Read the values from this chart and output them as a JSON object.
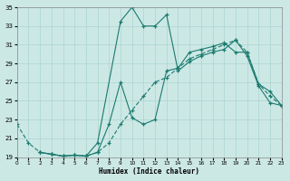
{
  "xlabel": "Humidex (Indice chaleur)",
  "xlim": [
    0,
    23
  ],
  "ylim": [
    19,
    35
  ],
  "yticks": [
    19,
    21,
    23,
    25,
    27,
    29,
    31,
    33,
    35
  ],
  "xticks": [
    0,
    1,
    2,
    3,
    4,
    5,
    6,
    7,
    8,
    9,
    10,
    11,
    12,
    13,
    14,
    15,
    16,
    17,
    18,
    19,
    20,
    21,
    22,
    23
  ],
  "bg_color": "#cce8e5",
  "grid_color": "#aad4d0",
  "line_color": "#1a7a6e",
  "line1_x": [
    0,
    1,
    2,
    3,
    4,
    5,
    6,
    7,
    8,
    9,
    10,
    11,
    12,
    13,
    14,
    15,
    16,
    17,
    18,
    19,
    20,
    21,
    22,
    23
  ],
  "line1_y": [
    22.5,
    20.5,
    19.5,
    19.3,
    19.1,
    19.2,
    19.1,
    19.5,
    20.5,
    22.5,
    24.0,
    25.5,
    27.0,
    27.5,
    28.5,
    29.5,
    30.0,
    30.5,
    31.0,
    31.5,
    30.2,
    26.8,
    25.5,
    24.5
  ],
  "line2_x": [
    2,
    3,
    4,
    5,
    6,
    7,
    8,
    9,
    10,
    11,
    12,
    13,
    14,
    15,
    16,
    17,
    18,
    19,
    20,
    21,
    22,
    23
  ],
  "line2_y": [
    19.5,
    19.3,
    19.1,
    19.2,
    19.1,
    19.5,
    22.5,
    27.0,
    23.2,
    22.5,
    23.0,
    28.2,
    28.5,
    30.2,
    30.5,
    30.8,
    31.2,
    30.2,
    30.2,
    26.8,
    26.0,
    24.5
  ],
  "line3_x": [
    2,
    3,
    4,
    5,
    6,
    7,
    9,
    10,
    11,
    12,
    13,
    14,
    15,
    16,
    17,
    18,
    19,
    20,
    21,
    22,
    23
  ],
  "line3_y": [
    19.5,
    19.3,
    19.1,
    19.2,
    19.1,
    20.5,
    33.5,
    35.0,
    33.0,
    33.0,
    34.2,
    28.2,
    29.2,
    29.8,
    30.2,
    30.5,
    31.5,
    29.8,
    26.6,
    24.8,
    24.5
  ]
}
